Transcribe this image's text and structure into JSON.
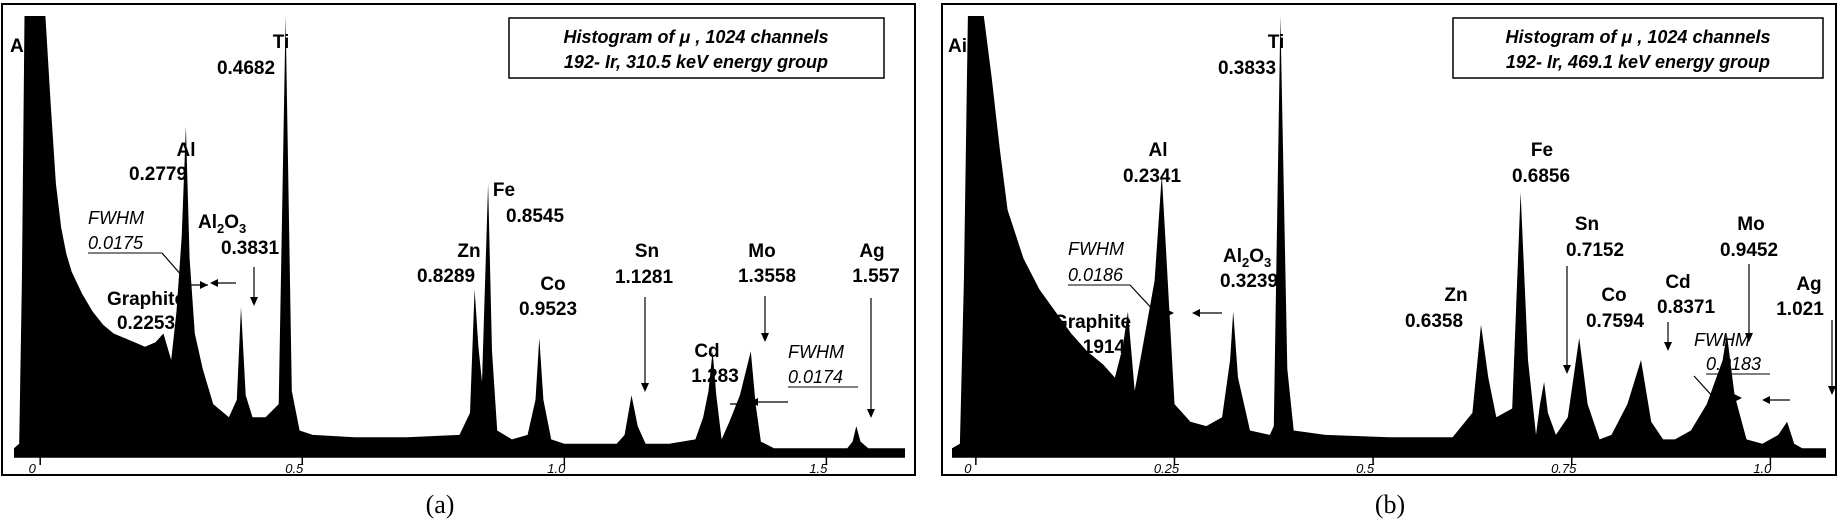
{
  "captions": [
    "(a)",
    "(b)"
  ],
  "chart_data": [
    {
      "type": "area",
      "panel": "(a)",
      "title_lines": [
        "Histogram of μ , 1024 channels",
        "192- Ir, 310.5 keV energy group"
      ],
      "xlim": [
        -0.05,
        1.65
      ],
      "xticks": [
        0,
        0.5,
        1.0,
        1.5
      ],
      "xtick_labels": [
        "0",
        "0.5",
        "1.0",
        "1.5"
      ],
      "ylim": [
        0,
        100
      ],
      "baseline": 1.5,
      "x": [
        -0.05,
        -0.04,
        -0.035,
        -0.03,
        -0.02,
        -0.01,
        0.0,
        0.01,
        0.02,
        0.03,
        0.04,
        0.05,
        0.06,
        0.08,
        0.1,
        0.12,
        0.14,
        0.16,
        0.18,
        0.2,
        0.22,
        0.235,
        0.25,
        0.26,
        0.27,
        0.2779,
        0.285,
        0.295,
        0.31,
        0.33,
        0.36,
        0.375,
        0.3831,
        0.392,
        0.405,
        0.43,
        0.455,
        0.4682,
        0.48,
        0.495,
        0.52,
        0.6,
        0.7,
        0.8,
        0.82,
        0.8289,
        0.836,
        0.843,
        0.8545,
        0.862,
        0.872,
        0.9,
        0.93,
        0.945,
        0.9523,
        0.96,
        0.975,
        1.0,
        1.05,
        1.1,
        1.115,
        1.1281,
        1.14,
        1.155,
        1.2,
        1.25,
        1.265,
        1.275,
        1.283,
        1.29,
        1.3,
        1.315,
        1.335,
        1.3558,
        1.365,
        1.375,
        1.4,
        1.45,
        1.5,
        1.54,
        1.55,
        1.557,
        1.565,
        1.58,
        1.65
      ],
      "values": [
        2,
        3,
        40,
        100,
        100,
        100,
        100,
        100,
        80,
        62,
        52,
        46,
        42,
        37,
        33,
        30,
        28,
        27,
        26,
        25,
        26,
        28,
        22,
        33,
        50,
        75,
        45,
        28,
        20,
        12,
        9,
        13,
        34,
        14,
        9,
        9,
        12,
        100,
        15,
        6,
        5,
        4.5,
        4.5,
        5,
        10,
        38,
        25,
        17,
        62,
        24,
        6,
        4,
        5,
        13,
        27,
        13,
        4,
        3,
        3,
        3,
        5,
        14,
        7,
        3,
        3,
        4,
        9,
        15,
        24,
        14,
        4,
        8,
        14,
        24,
        12,
        3.5,
        2,
        2,
        2,
        2,
        3.5,
        7,
        3.5,
        2,
        2
      ],
      "peaks": [
        {
          "name": "Air",
          "value": ""
        },
        {
          "name": "Graphite",
          "value": "0.2253"
        },
        {
          "name": "Al",
          "value": "0.2779"
        },
        {
          "name": "Al2O3",
          "value": "0.3831"
        },
        {
          "name": "Ti",
          "value": "0.4682"
        },
        {
          "name": "Zn",
          "value": "0.8289"
        },
        {
          "name": "Fe",
          "value": "0.8545"
        },
        {
          "name": "Co",
          "value": "0.9523"
        },
        {
          "name": "Sn",
          "value": "1.1281"
        },
        {
          "name": "Cd",
          "value": "1.283"
        },
        {
          "name": "Mo",
          "value": "1.3558"
        },
        {
          "name": "Ag",
          "value": "1.557"
        }
      ],
      "fwhm": [
        {
          "label": "FWHM",
          "value": "0.0175"
        },
        {
          "label": "FWHM",
          "value": "0.0174"
        }
      ]
    },
    {
      "type": "area",
      "panel": "(b)",
      "title_lines": [
        "Histogram of μ , 1024 channels",
        "192- Ir, 469.1 keV energy group"
      ],
      "xlim": [
        -0.03,
        1.07
      ],
      "xticks": [
        0,
        0.25,
        0.5,
        0.75,
        1.0
      ],
      "xtick_labels": [
        "0",
        "0.25",
        "0.5",
        "0.75",
        "1.0"
      ],
      "ylim": [
        0,
        100
      ],
      "baseline": 1.5,
      "x": [
        -0.03,
        -0.02,
        -0.015,
        -0.01,
        0.0,
        0.01,
        0.02,
        0.03,
        0.04,
        0.06,
        0.08,
        0.1,
        0.12,
        0.14,
        0.16,
        0.175,
        0.185,
        0.1914,
        0.2,
        0.21,
        0.225,
        0.2341,
        0.24,
        0.25,
        0.27,
        0.29,
        0.31,
        0.32,
        0.3239,
        0.33,
        0.345,
        0.37,
        0.375,
        0.3833,
        0.392,
        0.4,
        0.44,
        0.52,
        0.6,
        0.625,
        0.6358,
        0.645,
        0.655,
        0.675,
        0.6856,
        0.695,
        0.705,
        0.71,
        0.7152,
        0.72,
        0.73,
        0.745,
        0.7594,
        0.77,
        0.785,
        0.8,
        0.82,
        0.8371,
        0.85,
        0.865,
        0.88,
        0.9,
        0.92,
        0.94,
        0.9452,
        0.955,
        0.97,
        0.99,
        1.01,
        1.021,
        1.03,
        1.04,
        1.07
      ],
      "values": [
        2,
        3,
        40,
        100,
        100,
        100,
        86,
        70,
        56,
        45,
        38,
        33,
        28,
        24,
        21,
        18,
        25,
        33,
        15,
        25,
        40,
        64,
        45,
        12,
        8,
        7,
        9,
        22,
        33,
        18,
        6,
        5,
        7,
        100,
        20,
        6,
        5,
        4.5,
        4.5,
        10,
        30,
        18,
        9,
        11,
        60,
        22,
        5,
        12,
        17,
        10,
        5,
        9,
        27,
        12,
        4,
        5,
        12,
        22,
        8,
        4,
        4,
        6,
        12,
        22,
        28,
        14,
        4,
        3,
        5,
        8,
        3,
        2,
        2
      ],
      "peaks": [
        {
          "name": "Air",
          "value": ""
        },
        {
          "name": "Graphite",
          "value": "0.1914"
        },
        {
          "name": "Al",
          "value": "0.2341"
        },
        {
          "name": "Al2O3",
          "value": "0.3239"
        },
        {
          "name": "Ti",
          "value": "0.3833"
        },
        {
          "name": "Zn",
          "value": "0.6358"
        },
        {
          "name": "Fe",
          "value": "0.6856"
        },
        {
          "name": "Sn",
          "value": "0.7152"
        },
        {
          "name": "Co",
          "value": "0.7594"
        },
        {
          "name": "Cd",
          "value": "0.8371"
        },
        {
          "name": "Mo",
          "value": "0.9452"
        },
        {
          "name": "Ag",
          "value": "1.021"
        }
      ],
      "fwhm": [
        {
          "label": "FWHM",
          "value": "0.0186"
        },
        {
          "label": "FWHM",
          "value": "0.0183"
        }
      ]
    }
  ]
}
